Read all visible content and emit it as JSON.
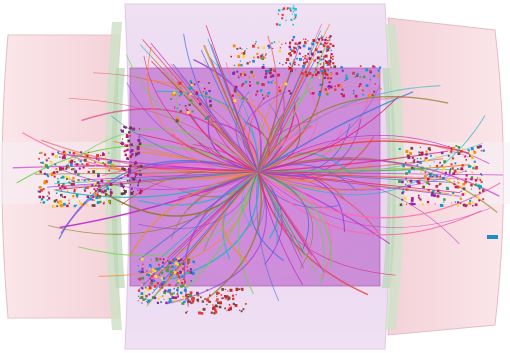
{
  "scene": {
    "subject": "collision-event-display",
    "background": "#ffffff",
    "colors": {
      "endcap_fill": "#f6d9de",
      "endcap_stroke": "#e3b8bf",
      "barrel_outer": "#ead6f0",
      "barrel_inner": "#cf7fd8",
      "ring_green": "#c9dcc3",
      "axis_band": "#f3eef3",
      "tracks": [
        "#e2207b",
        "#9b3de0",
        "#3a6fe0",
        "#2ab3c8",
        "#e84545",
        "#f08a24",
        "#6ad24a",
        "#c52cc9",
        "#8f7c2a",
        "#ff66aa"
      ],
      "hits": [
        "#d81b60",
        "#8e24aa",
        "#1e88e5",
        "#00acc1",
        "#43a047",
        "#fdd835",
        "#e53935",
        "#6d4c41",
        "#fb8c00",
        "#c2185b"
      ],
      "marker": "#1e8bc3"
    }
  }
}
